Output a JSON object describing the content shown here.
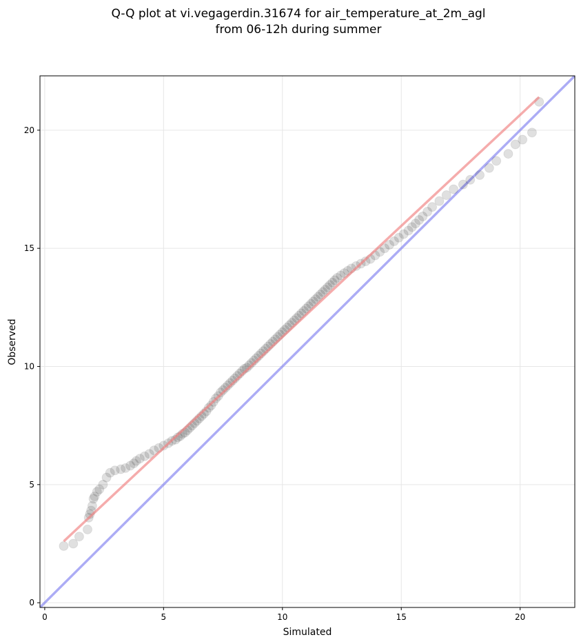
{
  "chart_data": {
    "type": "scatter",
    "title": [
      "Q-Q plot at vi.vegagerdin.31674 for air_temperature_at_2m_agl",
      "from 06-12h during summer"
    ],
    "xlabel": "Simulated",
    "ylabel": "Observed",
    "xlim": [
      -0.2,
      22.3
    ],
    "ylim": [
      -0.2,
      22.3
    ],
    "xticks": [
      0,
      5,
      10,
      15,
      20
    ],
    "yticks": [
      0,
      5,
      10,
      15,
      20
    ],
    "grid": true,
    "colors": {
      "points": "#000000",
      "fit_line": "#f08080",
      "identity_line": "#8080f0",
      "grid": "#e6e6e6"
    },
    "fit_line": {
      "x": [
        0.8,
        20.8
      ],
      "y": [
        2.6,
        21.4
      ]
    },
    "identity_line": {
      "x": [
        -0.2,
        22.3
      ],
      "y": [
        -0.2,
        22.3
      ]
    },
    "series": [
      {
        "x": [
          0.8,
          1.2,
          1.45,
          1.8,
          1.85,
          1.9,
          1.95,
          2.0,
          2.05,
          2.1,
          2.2,
          2.3,
          2.45,
          2.6,
          2.75,
          2.95,
          3.2,
          3.4,
          3.6,
          3.75,
          3.85,
          4.0,
          4.2,
          4.4,
          4.6,
          4.8,
          5.0,
          5.2,
          5.35,
          5.5,
          5.6,
          5.7,
          5.8,
          5.9,
          6.0,
          6.1,
          6.2,
          6.3,
          6.4,
          6.5,
          6.6,
          6.7,
          6.8,
          6.9,
          7.0,
          7.1,
          7.2,
          7.3,
          7.4,
          7.5,
          7.6,
          7.7,
          7.8,
          7.9,
          8.0,
          8.1,
          8.2,
          8.3,
          8.4,
          8.5,
          8.6,
          8.7,
          8.8,
          8.9,
          9.0,
          9.1,
          9.2,
          9.3,
          9.4,
          9.5,
          9.6,
          9.7,
          9.8,
          9.9,
          10.0,
          10.1,
          10.2,
          10.3,
          10.4,
          10.5,
          10.6,
          10.7,
          10.8,
          10.9,
          11.0,
          11.1,
          11.2,
          11.3,
          11.4,
          11.5,
          11.6,
          11.7,
          11.8,
          11.9,
          12.0,
          12.1,
          12.2,
          12.3,
          12.45,
          12.6,
          12.75,
          12.9,
          13.1,
          13.3,
          13.5,
          13.7,
          13.9,
          14.1,
          14.3,
          14.5,
          14.7,
          14.9,
          15.1,
          15.3,
          15.45,
          15.6,
          15.75,
          15.9,
          16.1,
          16.3,
          16.6,
          16.9,
          17.2,
          17.6,
          17.9,
          18.3,
          18.7,
          19.0,
          19.5,
          19.8,
          20.1,
          20.5,
          20.8
        ],
        "y": [
          2.4,
          2.5,
          2.8,
          3.1,
          3.6,
          3.75,
          3.9,
          4.1,
          4.4,
          4.5,
          4.7,
          4.8,
          5.0,
          5.3,
          5.5,
          5.6,
          5.65,
          5.7,
          5.8,
          5.9,
          6.0,
          6.1,
          6.2,
          6.3,
          6.45,
          6.55,
          6.65,
          6.75,
          6.85,
          6.9,
          7.0,
          7.05,
          7.15,
          7.2,
          7.3,
          7.4,
          7.5,
          7.6,
          7.7,
          7.8,
          7.9,
          8.0,
          8.1,
          8.25,
          8.35,
          8.5,
          8.65,
          8.75,
          8.9,
          9.0,
          9.1,
          9.2,
          9.3,
          9.4,
          9.5,
          9.6,
          9.7,
          9.8,
          9.9,
          9.95,
          10.05,
          10.15,
          10.25,
          10.35,
          10.45,
          10.55,
          10.65,
          10.75,
          10.85,
          10.95,
          11.05,
          11.15,
          11.25,
          11.35,
          11.45,
          11.55,
          11.65,
          11.75,
          11.85,
          11.95,
          12.05,
          12.15,
          12.25,
          12.35,
          12.45,
          12.55,
          12.65,
          12.75,
          12.85,
          12.95,
          13.05,
          13.15,
          13.25,
          13.35,
          13.45,
          13.55,
          13.65,
          13.75,
          13.85,
          13.95,
          14.05,
          14.15,
          14.25,
          14.35,
          14.45,
          14.55,
          14.7,
          14.85,
          15.0,
          15.15,
          15.3,
          15.45,
          15.6,
          15.75,
          15.9,
          16.05,
          16.2,
          16.35,
          16.55,
          16.75,
          17.0,
          17.25,
          17.5,
          17.7,
          17.9,
          18.1,
          18.4,
          18.7,
          19.0,
          19.4,
          19.6,
          19.9,
          21.2
        ]
      }
    ]
  }
}
